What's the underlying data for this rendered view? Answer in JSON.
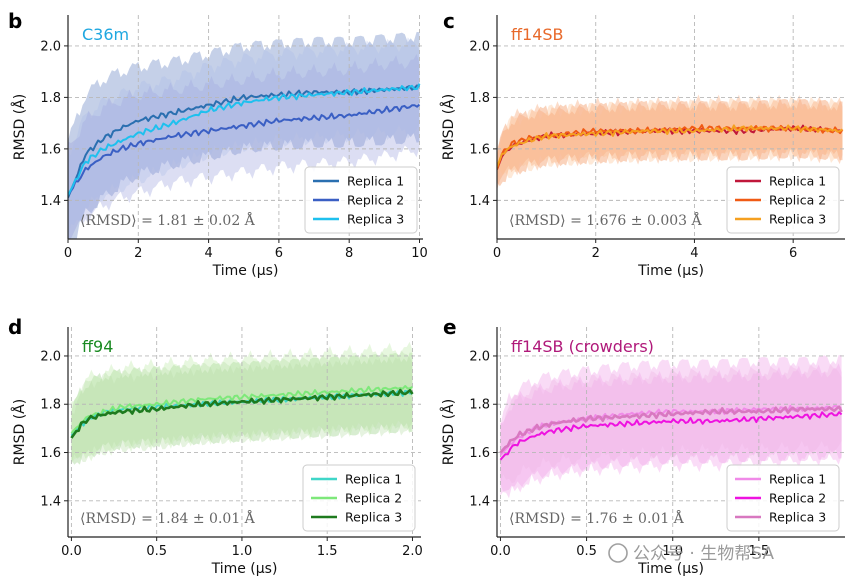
{
  "watermark": "公众号 · 生物帮SA",
  "chart_data": [
    {
      "type": "line",
      "panel": "b",
      "title": "C36m",
      "title_color": "#1ea7e0",
      "xlabel": "Time (μs)",
      "ylabel": "RMSD (Å)",
      "xlim": [
        0,
        10.1
      ],
      "ylim": [
        1.25,
        2.12
      ],
      "xticks": [
        0,
        2,
        4,
        6,
        8,
        10
      ],
      "xtick_labels": [
        "0",
        "2",
        "4",
        "6",
        "8",
        "10"
      ],
      "yticks": [
        1.4,
        1.6,
        1.8,
        2.0
      ],
      "ytick_labels": [
        "1.4",
        "1.6",
        "1.8",
        "2.0"
      ],
      "annotation": "⟨RMSD⟩ = 1.81 ± 0.02 Å",
      "legend_position": "lower-right",
      "series": [
        {
          "name": "Replica 1",
          "color": "#2a6fb0",
          "band_color": "#7f97cc",
          "band_opacity": 0.45,
          "x": [
            0,
            0.5,
            1,
            1.5,
            2,
            3,
            4,
            5,
            6,
            7,
            8,
            9,
            10
          ],
          "y": [
            1.41,
            1.58,
            1.64,
            1.68,
            1.71,
            1.74,
            1.77,
            1.8,
            1.81,
            1.82,
            1.82,
            1.83,
            1.84
          ],
          "band": [
            0.22,
            0.23,
            0.23,
            0.22,
            0.21,
            0.2,
            0.2,
            0.2,
            0.2,
            0.2,
            0.2,
            0.2,
            0.2
          ]
        },
        {
          "name": "Replica 2",
          "color": "#3a5fc4",
          "band_color": "#9aa0dd",
          "band_opacity": 0.35,
          "x": [
            0,
            0.5,
            1,
            1.5,
            2,
            3,
            4,
            5,
            6,
            7,
            8,
            9,
            10
          ],
          "y": [
            1.42,
            1.52,
            1.57,
            1.6,
            1.62,
            1.65,
            1.67,
            1.69,
            1.71,
            1.72,
            1.73,
            1.75,
            1.77
          ],
          "band": [
            0.18,
            0.19,
            0.19,
            0.19,
            0.19,
            0.18,
            0.18,
            0.18,
            0.18,
            0.18,
            0.18,
            0.18,
            0.17
          ]
        },
        {
          "name": "Replica 3",
          "color": "#1ec0ee",
          "band_color": "#a8b8e8",
          "band_opacity": 0.3,
          "x": [
            0,
            0.5,
            1,
            1.5,
            2,
            3,
            4,
            5,
            6,
            7,
            8,
            9,
            10
          ],
          "y": [
            1.42,
            1.55,
            1.6,
            1.63,
            1.66,
            1.7,
            1.75,
            1.78,
            1.8,
            1.81,
            1.82,
            1.83,
            1.84
          ],
          "band": [
            0.16,
            0.18,
            0.18,
            0.18,
            0.18,
            0.17,
            0.17,
            0.17,
            0.17,
            0.17,
            0.17,
            0.17,
            0.17
          ]
        }
      ]
    },
    {
      "type": "line",
      "panel": "c",
      "title": "ff14SB",
      "title_color": "#e8692a",
      "xlabel": "Time (μs)",
      "ylabel": "RMSD (Å)",
      "xlim": [
        0,
        7.05
      ],
      "ylim": [
        1.25,
        2.12
      ],
      "xticks": [
        0,
        2,
        4,
        6
      ],
      "xtick_labels": [
        "0",
        "2",
        "4",
        "6"
      ],
      "yticks": [
        1.4,
        1.6,
        1.8,
        2.0
      ],
      "ytick_labels": [
        "1.4",
        "1.6",
        "1.8",
        "2.0"
      ],
      "annotation": "⟨RMSD⟩ = 1.676 ± 0.003 Å",
      "legend_position": "lower-right",
      "series": [
        {
          "name": "Replica 1",
          "color": "#c0173a",
          "band_color": "#f59d6a",
          "band_opacity": 0.45,
          "x": [
            0,
            0.1,
            0.3,
            0.6,
            1,
            2,
            3,
            4,
            5,
            6,
            7
          ],
          "y": [
            1.52,
            1.57,
            1.61,
            1.63,
            1.65,
            1.66,
            1.67,
            1.67,
            1.67,
            1.68,
            1.67
          ],
          "band": [
            0.05,
            0.09,
            0.1,
            0.1,
            0.1,
            0.1,
            0.1,
            0.1,
            0.1,
            0.1,
            0.1
          ]
        },
        {
          "name": "Replica 2",
          "color": "#f05a14",
          "band_color": "#f8a878",
          "band_opacity": 0.4,
          "x": [
            0,
            0.1,
            0.3,
            0.6,
            1,
            2,
            3,
            4,
            5,
            6,
            7
          ],
          "y": [
            1.52,
            1.58,
            1.62,
            1.64,
            1.65,
            1.67,
            1.67,
            1.68,
            1.68,
            1.68,
            1.67
          ],
          "band": [
            0.05,
            0.09,
            0.1,
            0.1,
            0.1,
            0.1,
            0.1,
            0.1,
            0.1,
            0.1,
            0.1
          ]
        },
        {
          "name": "Replica 3",
          "color": "#f5a020",
          "band_color": "#fbbf8e",
          "band_opacity": 0.35,
          "x": [
            0,
            0.1,
            0.3,
            0.6,
            1,
            2,
            3,
            4,
            5,
            6,
            7
          ],
          "y": [
            1.53,
            1.58,
            1.61,
            1.63,
            1.65,
            1.66,
            1.67,
            1.67,
            1.68,
            1.68,
            1.67
          ],
          "band": [
            0.05,
            0.09,
            0.1,
            0.1,
            0.1,
            0.1,
            0.1,
            0.1,
            0.1,
            0.1,
            0.1
          ]
        }
      ]
    },
    {
      "type": "line",
      "panel": "d",
      "title": "ff94",
      "title_color": "#1a8a22",
      "xlabel": "Time (μs)",
      "ylabel": "RMSD (Å)",
      "xlim": [
        -0.02,
        2.05
      ],
      "ylim": [
        1.25,
        2.12
      ],
      "xticks": [
        0.0,
        0.5,
        1.0,
        1.5,
        2.0
      ],
      "xtick_labels": [
        "0.0",
        "0.5",
        "1.0",
        "1.5",
        "2.0"
      ],
      "yticks": [
        1.4,
        1.6,
        1.8,
        2.0
      ],
      "ytick_labels": [
        "1.4",
        "1.6",
        "1.8",
        "2.0"
      ],
      "annotation": "⟨RMSD⟩ = 1.84 ± 0.01 Å",
      "legend_position": "lower-right",
      "series": [
        {
          "name": "Replica 1",
          "color": "#3fd6c8",
          "band_color": "#a8d89a",
          "band_opacity": 0.45,
          "x": [
            0,
            0.05,
            0.1,
            0.2,
            0.3,
            0.5,
            0.75,
            1.0,
            1.25,
            1.5,
            1.75,
            2.0
          ],
          "y": [
            1.67,
            1.71,
            1.74,
            1.77,
            1.78,
            1.79,
            1.8,
            1.81,
            1.82,
            1.83,
            1.84,
            1.85
          ],
          "band": [
            0.1,
            0.14,
            0.15,
            0.15,
            0.15,
            0.15,
            0.15,
            0.15,
            0.15,
            0.15,
            0.15,
            0.15
          ]
        },
        {
          "name": "Replica 2",
          "color": "#7ee87a",
          "band_color": "#c4ecb0",
          "band_opacity": 0.4,
          "x": [
            0,
            0.05,
            0.1,
            0.2,
            0.3,
            0.5,
            0.75,
            1.0,
            1.25,
            1.5,
            1.75,
            2.0
          ],
          "y": [
            1.68,
            1.72,
            1.75,
            1.77,
            1.79,
            1.8,
            1.82,
            1.83,
            1.84,
            1.85,
            1.86,
            1.87
          ],
          "band": [
            0.1,
            0.15,
            0.16,
            0.16,
            0.16,
            0.16,
            0.16,
            0.16,
            0.16,
            0.16,
            0.16,
            0.16
          ]
        },
        {
          "name": "Replica 3",
          "color": "#1e7a1e",
          "band_color": "#b6dca6",
          "band_opacity": 0.35,
          "x": [
            0,
            0.05,
            0.1,
            0.2,
            0.3,
            0.5,
            0.75,
            1.0,
            1.25,
            1.5,
            1.75,
            2.0
          ],
          "y": [
            1.66,
            1.71,
            1.74,
            1.76,
            1.77,
            1.78,
            1.8,
            1.81,
            1.82,
            1.83,
            1.84,
            1.85
          ],
          "band": [
            0.1,
            0.14,
            0.15,
            0.15,
            0.15,
            0.15,
            0.15,
            0.15,
            0.15,
            0.15,
            0.15,
            0.15
          ]
        }
      ]
    },
    {
      "type": "line",
      "panel": "e",
      "title": "ff14SB (crowders)",
      "title_color": "#b0197a",
      "xlabel": "Time (μs)",
      "ylabel": "RMSD (Å)",
      "xlim": [
        -0.02,
        2.0
      ],
      "ylim": [
        1.25,
        2.12
      ],
      "xticks": [
        0.0,
        0.5,
        1.0,
        1.5
      ],
      "xtick_labels": [
        "0.0",
        "0.5",
        "1.0",
        "1.5"
      ],
      "yticks": [
        1.4,
        1.6,
        1.8,
        2.0
      ],
      "ytick_labels": [
        "1.4",
        "1.6",
        "1.8",
        "2.0"
      ],
      "annotation": "⟨RMSD⟩ = 1.76 ± 0.01 Å",
      "legend_position": "lower-right",
      "series": [
        {
          "name": "Replica 1",
          "color": "#f08ae8",
          "band_color": "#f2b0ea",
          "band_opacity": 0.45,
          "x": [
            0,
            0.05,
            0.1,
            0.2,
            0.3,
            0.5,
            0.75,
            1.0,
            1.25,
            1.5,
            1.75,
            1.98
          ],
          "y": [
            1.59,
            1.63,
            1.66,
            1.7,
            1.72,
            1.74,
            1.76,
            1.77,
            1.77,
            1.78,
            1.78,
            1.79
          ],
          "band": [
            0.12,
            0.2,
            0.2,
            0.2,
            0.2,
            0.2,
            0.2,
            0.2,
            0.2,
            0.2,
            0.2,
            0.2
          ]
        },
        {
          "name": "Replica 2",
          "color": "#ee12e0",
          "band_color": "#f2a8ec",
          "band_opacity": 0.4,
          "x": [
            0,
            0.05,
            0.1,
            0.2,
            0.3,
            0.5,
            0.75,
            1.0,
            1.25,
            1.5,
            1.75,
            1.98
          ],
          "y": [
            1.57,
            1.61,
            1.64,
            1.67,
            1.69,
            1.71,
            1.72,
            1.73,
            1.73,
            1.74,
            1.75,
            1.76
          ],
          "band": [
            0.12,
            0.18,
            0.18,
            0.18,
            0.18,
            0.18,
            0.18,
            0.18,
            0.18,
            0.18,
            0.18,
            0.18
          ]
        },
        {
          "name": "Replica 3",
          "color": "#d878c0",
          "band_color": "#eeb4e2",
          "band_opacity": 0.35,
          "x": [
            0,
            0.05,
            0.1,
            0.2,
            0.3,
            0.5,
            0.75,
            1.0,
            1.25,
            1.5,
            1.75,
            1.98
          ],
          "y": [
            1.6,
            1.64,
            1.67,
            1.7,
            1.72,
            1.74,
            1.75,
            1.76,
            1.77,
            1.77,
            1.78,
            1.78
          ],
          "band": [
            0.12,
            0.16,
            0.16,
            0.16,
            0.16,
            0.16,
            0.16,
            0.16,
            0.16,
            0.16,
            0.16,
            0.16
          ]
        }
      ]
    }
  ]
}
